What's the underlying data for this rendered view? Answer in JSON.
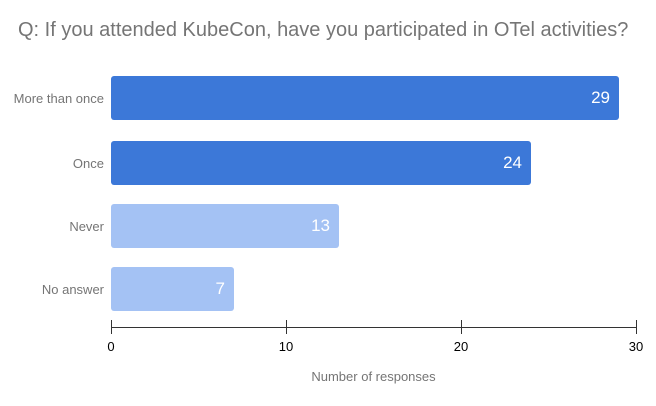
{
  "chart_data": {
    "type": "bar",
    "orientation": "horizontal",
    "title": "Q: If you attended KubeCon, have you participated in OTel activities?",
    "categories": [
      "More than once",
      "Once",
      "Never",
      "No answer"
    ],
    "values": [
      29,
      24,
      13,
      7
    ],
    "bar_colors": [
      "#3c78d8",
      "#3c78d8",
      "#a4c2f4",
      "#a4c2f4"
    ],
    "xlabel": "Number of responses",
    "ylabel": "",
    "xlim": [
      0,
      30
    ],
    "x_ticks": [
      0,
      10,
      20,
      30
    ],
    "grid": false,
    "legend": "none"
  },
  "colors": {
    "bar_primary": "#3c78d8",
    "bar_secondary": "#a4c2f4",
    "title_text": "#757575",
    "category_text": "#757575",
    "tick_text": "#000000",
    "axis_line": "#333333",
    "value_text": "#ffffff",
    "background": "#ffffff"
  }
}
